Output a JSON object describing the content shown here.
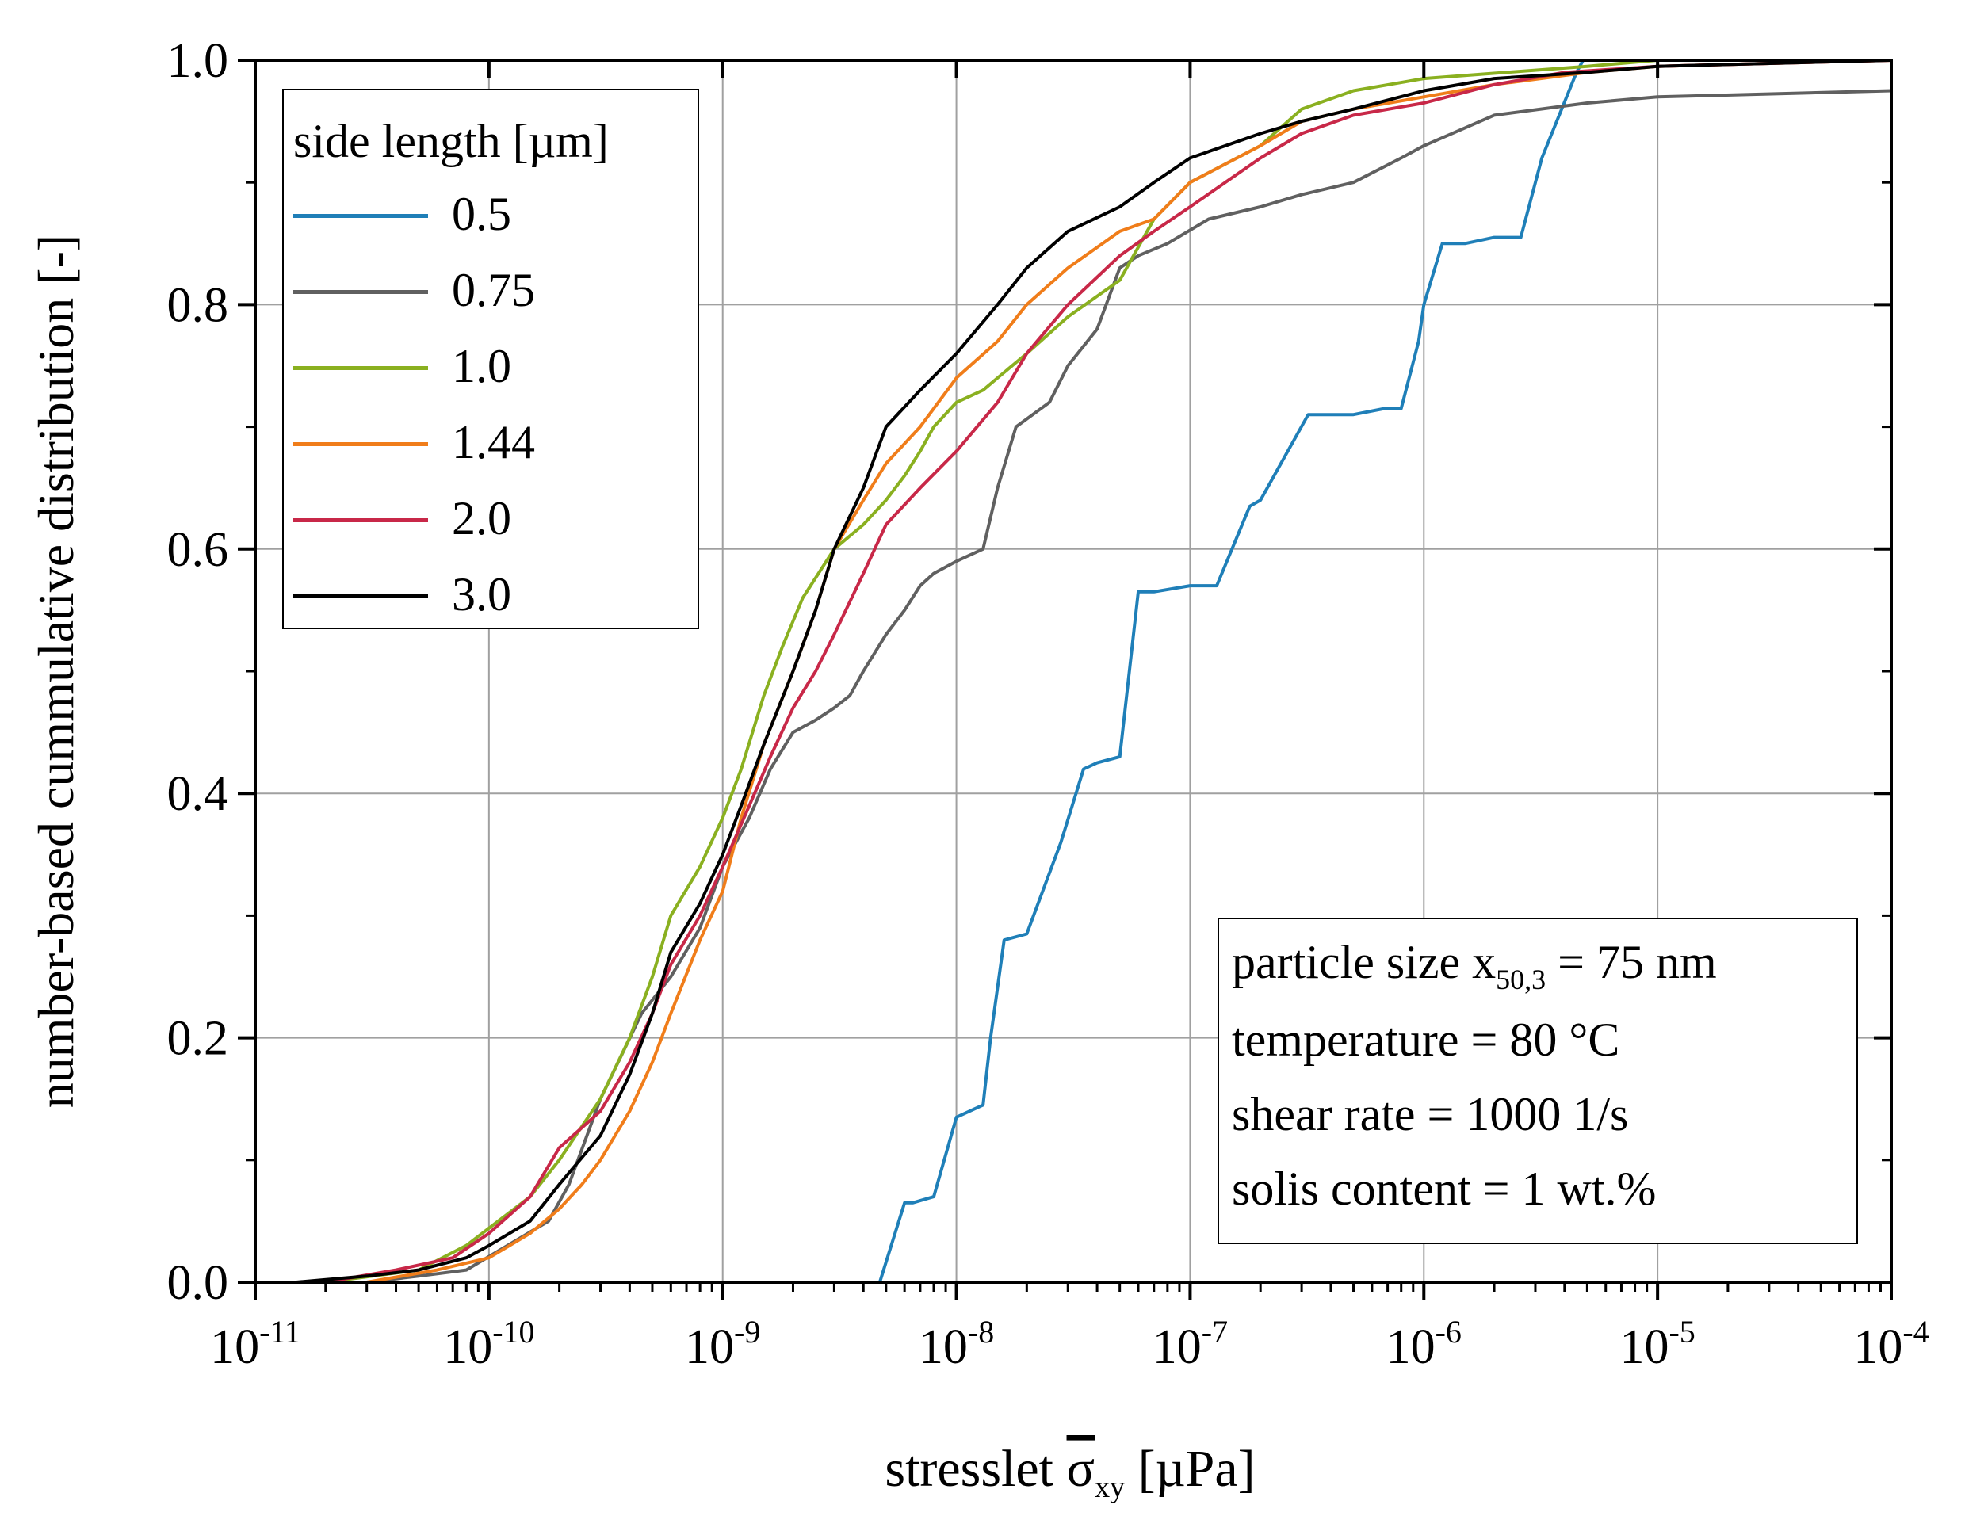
{
  "chart_data": {
    "type": "line",
    "xscale": "log",
    "xlim": [
      1e-11,
      0.0001
    ],
    "ylim": [
      0.0,
      1.0
    ],
    "grid": true,
    "xlabel": {
      "main": "stresslet ",
      "symbol": "σ",
      "sub": "xy",
      "unit": " [µPa]"
    },
    "ylabel": "number-based cummulative distribution [-]",
    "xticks": [
      {
        "base": "10",
        "exp": "-11",
        "value": 1e-11
      },
      {
        "base": "10",
        "exp": "-10",
        "value": 1e-10
      },
      {
        "base": "10",
        "exp": "-9",
        "value": 1e-09
      },
      {
        "base": "10",
        "exp": "-8",
        "value": 1e-08
      },
      {
        "base": "10",
        "exp": "-7",
        "value": 1e-07
      },
      {
        "base": "10",
        "exp": "-6",
        "value": 1e-06
      },
      {
        "base": "10",
        "exp": "-5",
        "value": 1e-05
      },
      {
        "base": "10",
        "exp": "-4",
        "value": 0.0001
      }
    ],
    "yticks": [
      "0.0",
      "0.2",
      "0.4",
      "0.6",
      "0.8",
      "1.0"
    ],
    "legend": {
      "title": "side length [µm]",
      "position": "top-left"
    },
    "series": [
      {
        "name": "0.5",
        "color": "#1f7fb8",
        "x": [
          4.7e-09,
          6e-09,
          6.5e-09,
          8e-09,
          1e-08,
          1.3e-08,
          1.4e-08,
          1.6e-08,
          2e-08,
          2.8e-08,
          3.5e-08,
          4e-08,
          5e-08,
          6e-08,
          7e-08,
          1e-07,
          1.3e-07,
          1.8e-07,
          2e-07,
          3.2e-07,
          5e-07,
          6.8e-07,
          8e-07,
          9.5e-07,
          1e-06,
          1.2e-06,
          1.5e-06,
          2e-06,
          2.6e-06,
          3.2e-06,
          4.5e-06,
          4.8e-06
        ],
        "y": [
          0.0,
          0.065,
          0.065,
          0.07,
          0.135,
          0.145,
          0.2,
          0.28,
          0.285,
          0.36,
          0.42,
          0.425,
          0.43,
          0.565,
          0.565,
          0.57,
          0.57,
          0.635,
          0.64,
          0.71,
          0.71,
          0.715,
          0.715,
          0.77,
          0.8,
          0.85,
          0.85,
          0.855,
          0.855,
          0.92,
          0.99,
          1.0
        ]
      },
      {
        "name": "0.75",
        "color": "#606060",
        "x": [
          3e-11,
          5e-11,
          8e-11,
          1.2e-10,
          1.8e-10,
          2.2e-10,
          3e-10,
          4.5e-10,
          6e-10,
          8e-10,
          1e-09,
          1.3e-09,
          1.6e-09,
          2e-09,
          2.5e-09,
          3e-09,
          3.5e-09,
          4e-09,
          5e-09,
          6e-09,
          7e-09,
          8e-09,
          1e-08,
          1.3e-08,
          1.5e-08,
          1.8e-08,
          2.5e-08,
          3e-08,
          4e-08,
          5e-08,
          6e-08,
          8e-08,
          1.2e-07,
          2e-07,
          3e-07,
          5e-07,
          8e-07,
          1e-06,
          2e-06,
          5e-06,
          1e-05,
          0.0001
        ],
        "y": [
          0.0,
          0.005,
          0.01,
          0.03,
          0.05,
          0.08,
          0.15,
          0.22,
          0.25,
          0.29,
          0.34,
          0.38,
          0.42,
          0.45,
          0.46,
          0.47,
          0.48,
          0.5,
          0.53,
          0.55,
          0.57,
          0.58,
          0.59,
          0.6,
          0.65,
          0.7,
          0.72,
          0.75,
          0.78,
          0.83,
          0.84,
          0.85,
          0.87,
          0.88,
          0.89,
          0.9,
          0.92,
          0.93,
          0.955,
          0.965,
          0.97,
          0.975
        ]
      },
      {
        "name": "1.0",
        "color": "#8ab020",
        "x": [
          2e-11,
          5e-11,
          8e-11,
          1.5e-10,
          2e-10,
          3e-10,
          4e-10,
          5e-10,
          6e-10,
          8e-10,
          1e-09,
          1.2e-09,
          1.5e-09,
          1.8e-09,
          2.2e-09,
          3e-09,
          4e-09,
          5e-09,
          6e-09,
          7e-09,
          8e-09,
          1e-08,
          1.3e-08,
          1.5e-08,
          2e-08,
          3e-08,
          5e-08,
          7e-08,
          1e-07,
          2e-07,
          3e-07,
          5e-07,
          1e-06,
          5e-06,
          1e-05,
          0.0001
        ],
        "y": [
          0.0,
          0.01,
          0.03,
          0.07,
          0.1,
          0.15,
          0.2,
          0.25,
          0.3,
          0.34,
          0.38,
          0.42,
          0.48,
          0.52,
          0.56,
          0.6,
          0.62,
          0.64,
          0.66,
          0.68,
          0.7,
          0.72,
          0.73,
          0.74,
          0.76,
          0.79,
          0.82,
          0.87,
          0.9,
          0.93,
          0.96,
          0.975,
          0.985,
          0.995,
          1.0,
          1.0
        ]
      },
      {
        "name": "1.44",
        "color": "#f07d1a",
        "x": [
          3e-11,
          6e-11,
          1e-10,
          1.5e-10,
          2e-10,
          2.5e-10,
          3e-10,
          4e-10,
          5e-10,
          6e-10,
          8e-10,
          1e-09,
          1.2e-09,
          1.5e-09,
          2e-09,
          2.5e-09,
          3e-09,
          4e-09,
          5e-09,
          7e-09,
          1e-08,
          1.5e-08,
          2e-08,
          3e-08,
          5e-08,
          7e-08,
          1e-07,
          2e-07,
          3e-07,
          5e-07,
          1e-06,
          2e-06,
          5e-06,
          1e-05,
          0.0001
        ],
        "y": [
          0.0,
          0.01,
          0.02,
          0.04,
          0.06,
          0.08,
          0.1,
          0.14,
          0.18,
          0.22,
          0.28,
          0.32,
          0.38,
          0.44,
          0.5,
          0.55,
          0.6,
          0.64,
          0.67,
          0.7,
          0.74,
          0.77,
          0.8,
          0.83,
          0.86,
          0.87,
          0.9,
          0.93,
          0.95,
          0.96,
          0.97,
          0.98,
          0.99,
          0.995,
          1.0
        ]
      },
      {
        "name": "2.0",
        "color": "#c82848",
        "x": [
          2e-11,
          4e-11,
          7e-11,
          1e-10,
          1.5e-10,
          2e-10,
          3e-10,
          4e-10,
          5e-10,
          6e-10,
          8e-10,
          1e-09,
          1.3e-09,
          1.6e-09,
          2e-09,
          2.5e-09,
          3e-09,
          4e-09,
          5e-09,
          7e-09,
          1e-08,
          1.5e-08,
          2e-08,
          3e-08,
          5e-08,
          7e-08,
          1e-07,
          2e-07,
          3e-07,
          5e-07,
          1e-06,
          2e-06,
          4e-06,
          1e-05,
          0.0001
        ],
        "y": [
          0.0,
          0.01,
          0.02,
          0.04,
          0.07,
          0.11,
          0.14,
          0.18,
          0.22,
          0.26,
          0.3,
          0.34,
          0.39,
          0.43,
          0.47,
          0.5,
          0.53,
          0.58,
          0.62,
          0.65,
          0.68,
          0.72,
          0.76,
          0.8,
          0.84,
          0.86,
          0.88,
          0.92,
          0.94,
          0.955,
          0.965,
          0.98,
          0.99,
          0.995,
          1.0
        ]
      },
      {
        "name": "3.0",
        "color": "#000000",
        "x": [
          1.5e-11,
          3e-11,
          5e-11,
          8e-11,
          1e-10,
          1.5e-10,
          2e-10,
          3e-10,
          4e-10,
          5e-10,
          6e-10,
          8e-10,
          1e-09,
          1.2e-09,
          1.5e-09,
          2e-09,
          2.5e-09,
          3e-09,
          4e-09,
          5e-09,
          7e-09,
          1e-08,
          1.5e-08,
          2e-08,
          3e-08,
          5e-08,
          7e-08,
          1e-07,
          2e-07,
          3e-07,
          5e-07,
          1e-06,
          2e-06,
          5e-06,
          1e-05,
          0.0001
        ],
        "y": [
          0.0,
          0.005,
          0.01,
          0.02,
          0.03,
          0.05,
          0.08,
          0.12,
          0.17,
          0.22,
          0.27,
          0.31,
          0.35,
          0.39,
          0.44,
          0.5,
          0.55,
          0.6,
          0.65,
          0.7,
          0.73,
          0.76,
          0.8,
          0.83,
          0.86,
          0.88,
          0.9,
          0.92,
          0.94,
          0.95,
          0.96,
          0.975,
          0.985,
          0.99,
          0.995,
          1.0
        ]
      }
    ],
    "annotation": {
      "lines": [
        {
          "pre": "particle size x",
          "sub": "50,3",
          "post": " = 75 nm"
        },
        {
          "pre": "temperature = 80 °C",
          "sub": "",
          "post": ""
        },
        {
          "pre": "shear rate = 1000 1/s",
          "sub": "",
          "post": ""
        },
        {
          "pre": "solis content = 1 wt.%",
          "sub": "",
          "post": ""
        }
      ],
      "position": "bottom-right"
    }
  }
}
